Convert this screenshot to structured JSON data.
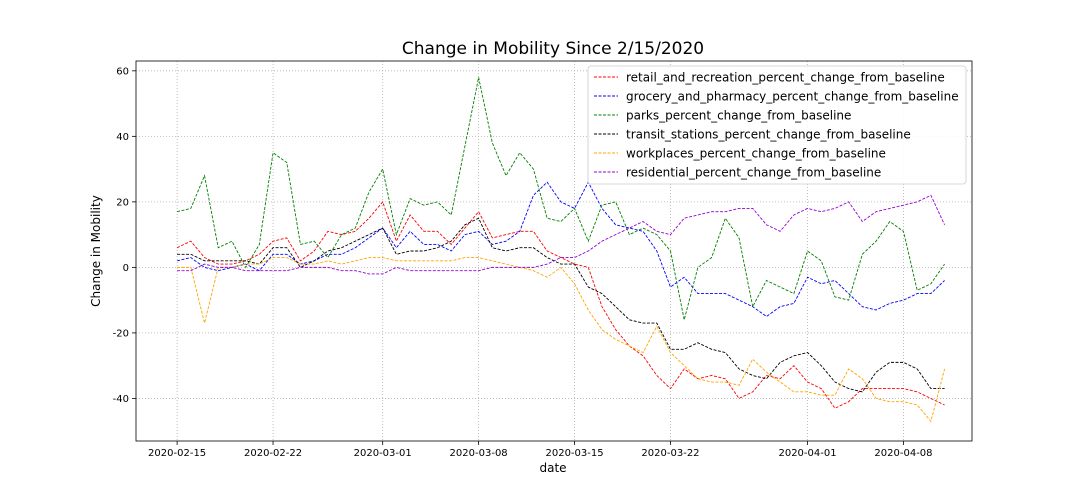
{
  "chart_data": {
    "type": "line",
    "title": "Change in Mobility Since 2/15/2020",
    "xlabel": "date",
    "ylabel": "Change in Mobility",
    "xlim": [
      "2020-02-12",
      "2020-04-13"
    ],
    "ylim": [
      -53,
      63
    ],
    "yticks": [
      -40,
      -20,
      0,
      20,
      40,
      60
    ],
    "xticks": [
      "2020-02-15",
      "2020-02-22",
      "2020-03-01",
      "2020-03-08",
      "2020-03-15",
      "2020-03-22",
      "2020-04-01",
      "2020-04-08"
    ],
    "grid": true,
    "legend_position": "top-right",
    "x": [
      "2020-02-15",
      "2020-02-16",
      "2020-02-17",
      "2020-02-18",
      "2020-02-19",
      "2020-02-20",
      "2020-02-21",
      "2020-02-22",
      "2020-02-23",
      "2020-02-24",
      "2020-02-25",
      "2020-02-26",
      "2020-02-27",
      "2020-02-28",
      "2020-02-29",
      "2020-03-01",
      "2020-03-02",
      "2020-03-03",
      "2020-03-04",
      "2020-03-05",
      "2020-03-06",
      "2020-03-07",
      "2020-03-08",
      "2020-03-09",
      "2020-03-10",
      "2020-03-11",
      "2020-03-12",
      "2020-03-13",
      "2020-03-14",
      "2020-03-15",
      "2020-03-16",
      "2020-03-17",
      "2020-03-18",
      "2020-03-19",
      "2020-03-20",
      "2020-03-21",
      "2020-03-22",
      "2020-03-23",
      "2020-03-24",
      "2020-03-25",
      "2020-03-26",
      "2020-03-27",
      "2020-03-28",
      "2020-03-29",
      "2020-03-30",
      "2020-03-31",
      "2020-04-01",
      "2020-04-02",
      "2020-04-03",
      "2020-04-04",
      "2020-04-05",
      "2020-04-06",
      "2020-04-07",
      "2020-04-08",
      "2020-04-09",
      "2020-04-10",
      "2020-04-11"
    ],
    "series": [
      {
        "name": "retail_and_recreation_percent_change_from_baseline",
        "color": "#ff0000",
        "values": [
          6,
          8,
          3,
          1,
          1,
          2,
          4,
          8,
          9,
          2,
          5,
          11,
          10,
          11,
          15,
          20,
          8,
          16,
          11,
          11,
          7,
          12,
          17,
          9,
          10,
          11,
          11,
          5,
          3,
          1,
          0,
          -12,
          -19,
          -24,
          -27,
          -33,
          -37,
          -31,
          -34,
          -33,
          -34,
          -40,
          -38,
          -33,
          -34,
          -30,
          -35,
          -37,
          -43,
          -41,
          -37,
          -37,
          -37,
          -37,
          -38,
          -40,
          -42
        ]
      },
      {
        "name": "grocery_and_pharmacy_percent_change_from_baseline",
        "color": "#0000ff",
        "values": [
          2,
          3,
          0,
          -1,
          0,
          1,
          -1,
          4,
          4,
          1,
          2,
          4,
          4,
          6,
          9,
          12,
          6,
          11,
          7,
          7,
          5,
          10,
          11,
          7,
          8,
          11,
          22,
          26,
          20,
          18,
          26,
          18,
          13,
          12,
          11,
          5,
          -6,
          -3,
          -8,
          -8,
          -8,
          -10,
          -12,
          -15,
          -12,
          -11,
          -3,
          -5,
          -4,
          -8,
          -12,
          -13,
          -11,
          -10,
          -8,
          -8,
          -4
        ]
      },
      {
        "name": "parks_percent_change_from_baseline",
        "color": "#008000",
        "values": [
          17,
          18,
          28,
          6,
          8,
          0,
          7,
          35,
          32,
          7,
          8,
          3,
          10,
          12,
          23,
          30,
          10,
          21,
          19,
          20,
          16,
          37,
          58,
          38,
          28,
          35,
          30,
          15,
          14,
          18,
          8,
          19,
          20,
          10,
          12,
          10,
          5,
          -16,
          0,
          3,
          15,
          9,
          -12,
          -4,
          -6,
          -8,
          5,
          2,
          -9,
          -10,
          4,
          8,
          14,
          11,
          -7,
          -5,
          1
        ]
      },
      {
        "name": "transit_stations_percent_change_from_baseline",
        "color": "#000000",
        "values": [
          4,
          4,
          2,
          2,
          2,
          2,
          1,
          6,
          6,
          0,
          2,
          5,
          6,
          8,
          10,
          12,
          4,
          5,
          5,
          6,
          8,
          13,
          15,
          6,
          5,
          6,
          6,
          3,
          1,
          1,
          -6,
          -8,
          -12,
          -16,
          -17,
          -17,
          -25,
          -25,
          -23,
          -25,
          -26,
          -31,
          -33,
          -34,
          -29,
          -27,
          -26,
          -30,
          -35,
          -37,
          -38,
          -32,
          -29,
          -29,
          -31,
          -37,
          -37
        ]
      },
      {
        "name": "workplaces_percent_change_from_baseline",
        "color": "#ffa500",
        "values": [
          0,
          0,
          -17,
          0,
          0,
          1,
          1,
          3,
          3,
          1,
          1,
          2,
          1,
          2,
          3,
          3,
          2,
          2,
          2,
          2,
          2,
          3,
          3,
          2,
          1,
          0,
          -1,
          -3,
          0,
          -5,
          -13,
          -19,
          -22,
          -24,
          -26,
          -18,
          -26,
          -30,
          -34,
          -35,
          -35,
          -36,
          -28,
          -32,
          -35,
          -38,
          -38,
          -39,
          -39,
          -31,
          -34,
          -40,
          -41,
          -41,
          -42,
          -47,
          -31
        ]
      },
      {
        "name": "residential_percent_change_from_baseline",
        "color": "#9400d3",
        "values": [
          -1,
          -1,
          1,
          0,
          0,
          -1,
          -1,
          -1,
          -1,
          0,
          0,
          0,
          -1,
          -1,
          -2,
          -2,
          0,
          -1,
          -1,
          -1,
          -1,
          -1,
          -1,
          0,
          0,
          0,
          0,
          1,
          3,
          3,
          5,
          8,
          10,
          12,
          14,
          11,
          10,
          15,
          16,
          17,
          17,
          18,
          18,
          13,
          11,
          16,
          18,
          17,
          18,
          20,
          14,
          17,
          18,
          19,
          20,
          22,
          13
        ]
      }
    ]
  }
}
